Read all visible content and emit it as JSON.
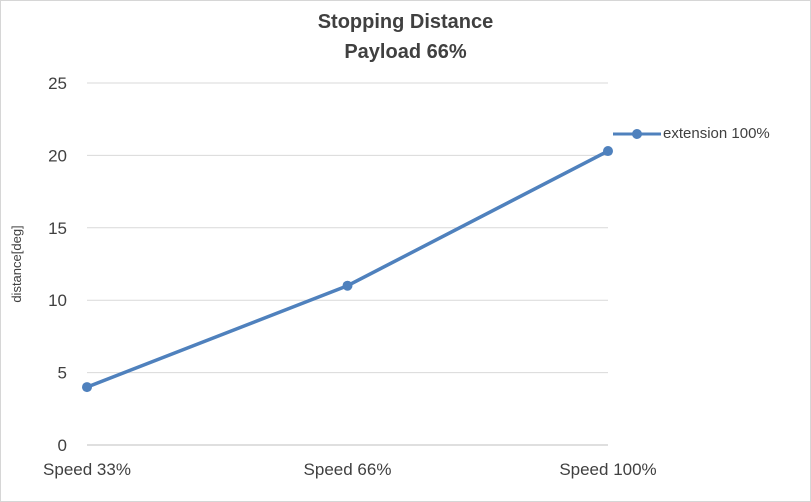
{
  "chart_data": {
    "type": "line",
    "title": "Stopping Distance",
    "subtitle": "Payload 66%",
    "categories": [
      "Speed 33%",
      "Speed 66%",
      "Speed 100%"
    ],
    "series": [
      {
        "name": "extension 100%",
        "values": [
          4,
          11,
          20.3
        ],
        "color": "#4f81bd"
      }
    ],
    "xlabel": "",
    "ylabel": "distance[deg]",
    "ylim": [
      0,
      25
    ],
    "ytick_step": 5,
    "grid": true,
    "legend_position": "right",
    "colors": {
      "gridline": "#d9d9d9",
      "axis_line": "#bfbfbf",
      "text": "#404040"
    }
  }
}
